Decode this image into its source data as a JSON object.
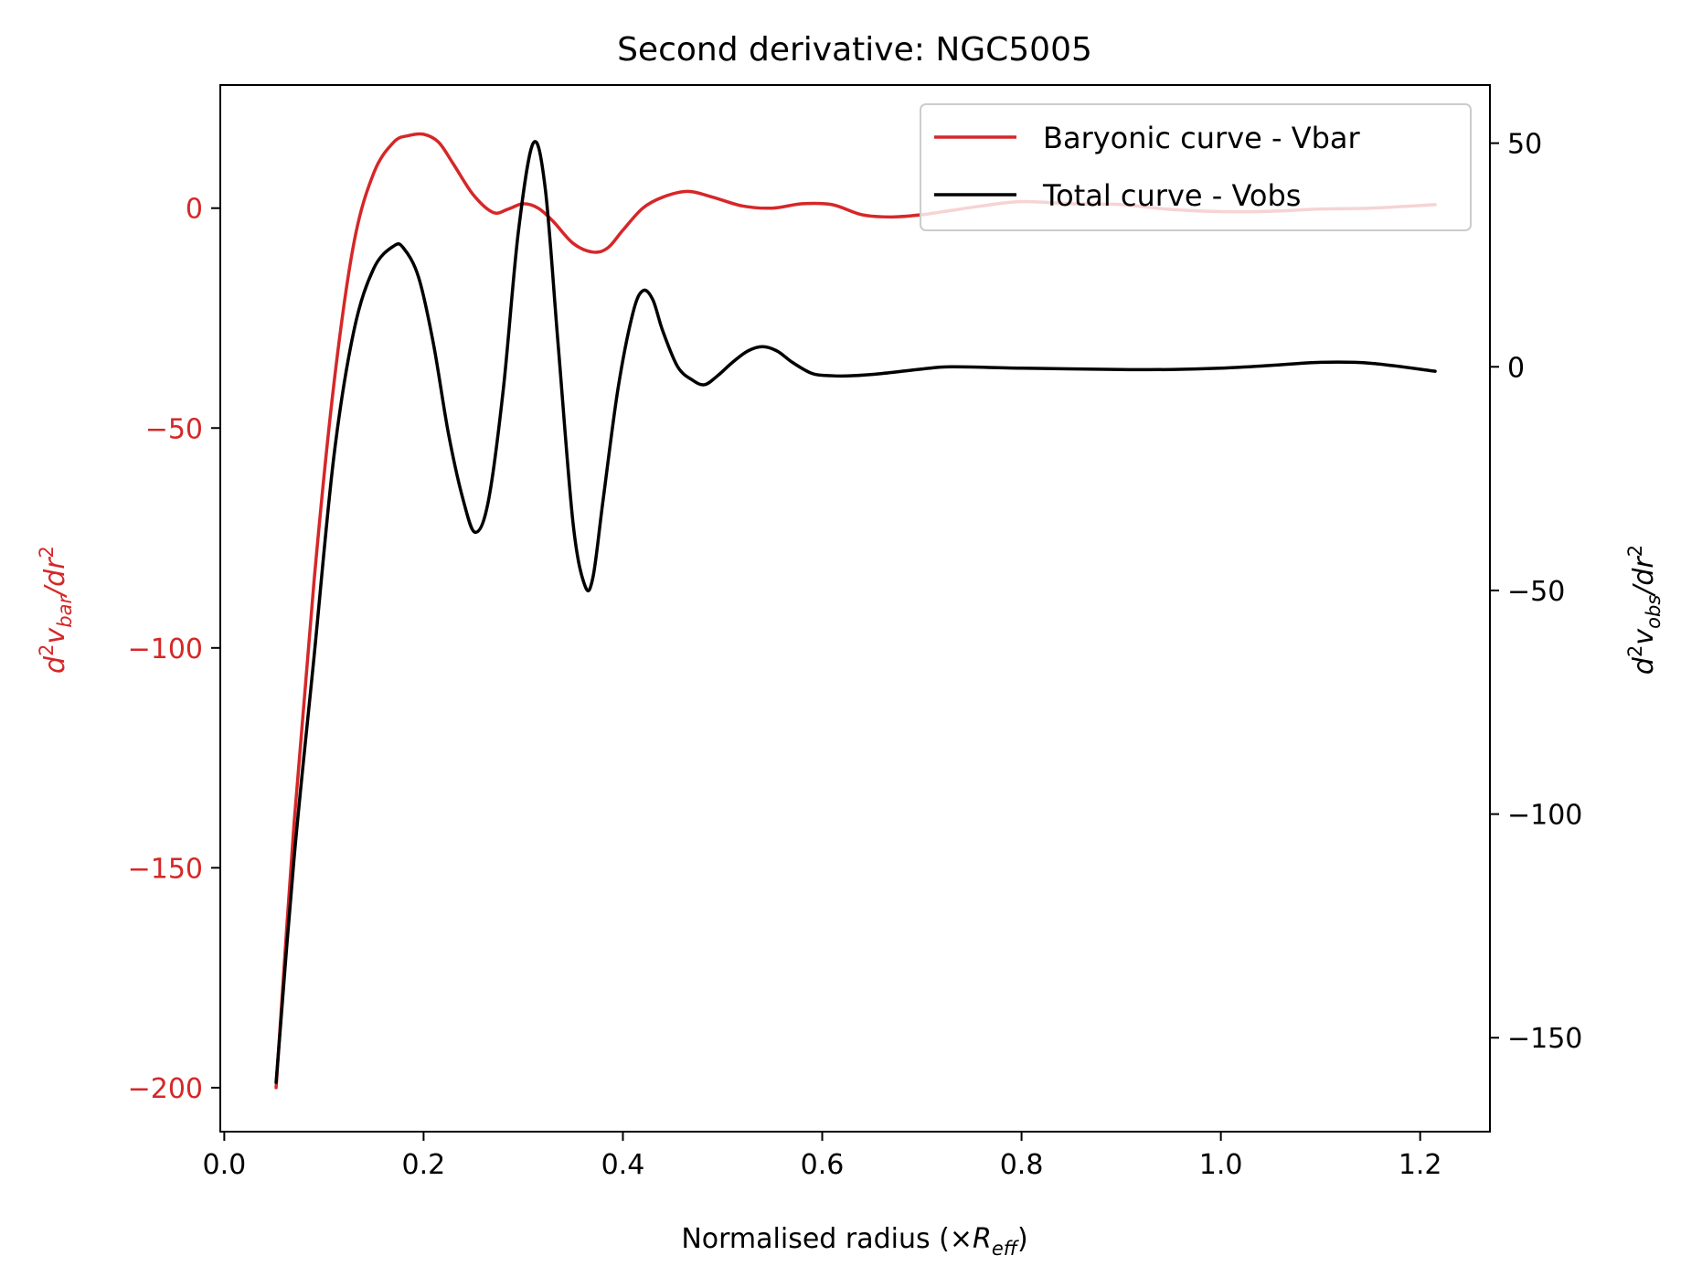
{
  "chart_data": {
    "type": "line",
    "title": "Second derivative: NGC5005",
    "xlabel": {
      "text": "Normalised radius (×",
      "italic": "R",
      "sub": "eff",
      "close": ")"
    },
    "ylabel_left": {
      "d": "d",
      "sup": "2",
      "v": "v",
      "sub": "bar",
      "rest": "/dr",
      "sup2": "2"
    },
    "ylabel_right": {
      "d": "d",
      "sup": "2",
      "v": "v",
      "sub": "obs",
      "rest": "/dr",
      "sup2": "2"
    },
    "xlim": [
      -0.004,
      1.27
    ],
    "ylim_left": [
      -210,
      28
    ],
    "ylim_right": [
      -171,
      63
    ],
    "x_ticks": [
      0.0,
      0.2,
      0.4,
      0.6,
      0.8,
      1.0,
      1.2
    ],
    "x_tick_labels": [
      "0.0",
      "0.2",
      "0.4",
      "0.6",
      "0.8",
      "1.0",
      "1.2"
    ],
    "y_left_ticks": [
      0,
      -50,
      -100,
      -150,
      -200
    ],
    "y_left_tick_labels": [
      "0",
      "−50",
      "−100",
      "−150",
      "−200"
    ],
    "y_right_ticks": [
      50,
      0,
      -50,
      -100,
      -150
    ],
    "y_right_tick_labels": [
      "50",
      "0",
      "−50",
      "−100",
      "−150"
    ],
    "grid": false,
    "legend_position": "top-right",
    "colors": {
      "left_axis": "#d62728",
      "bar": "#d62728",
      "obs": "#000000"
    },
    "series": [
      {
        "name": "Baryonic curve - Vbar",
        "axis": "left",
        "color": "#d62728",
        "x": [
          0.052,
          0.07,
          0.09,
          0.11,
          0.13,
          0.15,
          0.17,
          0.185,
          0.2,
          0.215,
          0.23,
          0.25,
          0.27,
          0.285,
          0.3,
          0.315,
          0.33,
          0.35,
          0.37,
          0.385,
          0.4,
          0.42,
          0.44,
          0.465,
          0.49,
          0.52,
          0.55,
          0.58,
          0.61,
          0.64,
          0.67,
          0.7,
          0.73,
          0.76,
          0.8,
          0.85,
          0.9,
          0.95,
          1.0,
          1.05,
          1.1,
          1.15,
          1.2,
          1.215
        ],
        "y": [
          -200,
          -140,
          -85,
          -40,
          -8,
          8,
          15,
          16.5,
          16.8,
          15,
          10,
          3,
          -1,
          -0.2,
          1,
          0,
          -3,
          -8,
          -10,
          -9,
          -5,
          0,
          2.5,
          3.8,
          2.5,
          0.5,
          0,
          1,
          0.8,
          -1.5,
          -2,
          -1.5,
          -0.5,
          0.5,
          1.5,
          1,
          0.8,
          -0.3,
          -0.8,
          -0.7,
          -0.2,
          0,
          0.6,
          0.8
        ]
      },
      {
        "name": "Total curve - Vobs",
        "axis": "right",
        "color": "#000000",
        "x": [
          0.052,
          0.07,
          0.09,
          0.11,
          0.13,
          0.15,
          0.17,
          0.18,
          0.195,
          0.21,
          0.225,
          0.24,
          0.252,
          0.265,
          0.28,
          0.295,
          0.31,
          0.322,
          0.335,
          0.35,
          0.362,
          0.37,
          0.38,
          0.395,
          0.41,
          0.42,
          0.43,
          0.44,
          0.455,
          0.47,
          0.482,
          0.495,
          0.51,
          0.525,
          0.54,
          0.555,
          0.57,
          0.59,
          0.61,
          0.63,
          0.66,
          0.7,
          0.73,
          0.8,
          0.9,
          0.95,
          1.0,
          1.05,
          1.1,
          1.15,
          1.215
        ],
        "y": [
          -160,
          -110,
          -65,
          -20,
          8,
          22,
          27,
          26.5,
          20,
          5,
          -15,
          -30,
          -37,
          -30,
          -5,
          30,
          50,
          40,
          5,
          -35,
          -49,
          -47,
          -30,
          -5,
          12,
          17,
          15,
          8,
          0,
          -3,
          -4,
          -2,
          1,
          3.5,
          4.5,
          3.5,
          1,
          -1.5,
          -2,
          -2,
          -1.5,
          -0.5,
          0,
          -0.3,
          -0.6,
          -0.6,
          -0.3,
          0.3,
          1,
          0.8,
          -1
        ]
      }
    ]
  }
}
